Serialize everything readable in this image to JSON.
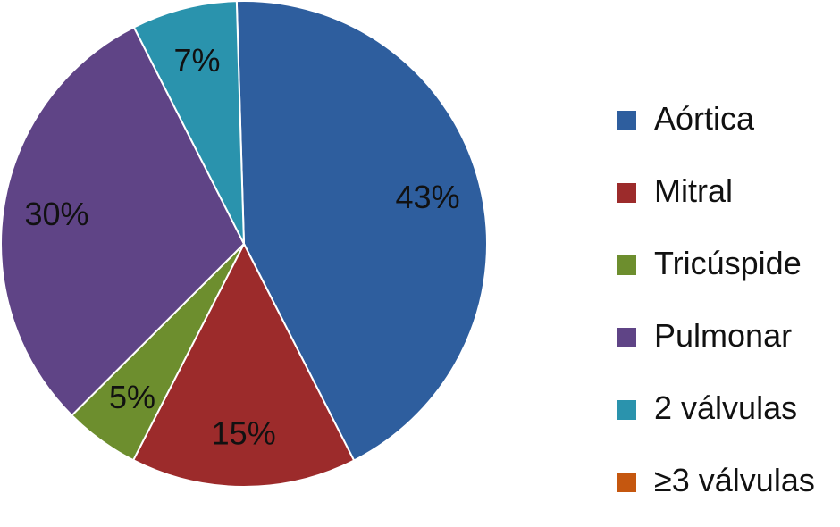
{
  "chart_data": {
    "type": "pie",
    "title": "",
    "slices": [
      {
        "label": "Aórtica",
        "value": 43,
        "value_label": "43%",
        "color": "#2e5e9e"
      },
      {
        "label": "Mitral",
        "value": 15,
        "value_label": "15%",
        "color": "#9c2b2b"
      },
      {
        "label": "Tricúspide",
        "value": 5,
        "value_label": "5%",
        "color": "#6d8e2e"
      },
      {
        "label": "Pulmonar",
        "value": 30,
        "value_label": "30%",
        "color": "#5f4486"
      },
      {
        "label": "2 válvulas",
        "value": 7,
        "value_label": "7%",
        "color": "#2a93ad"
      },
      {
        "label": "≥3 válvulas",
        "value": 0,
        "value_label": "",
        "color": "#c5570f"
      }
    ],
    "legend_position": "right"
  }
}
